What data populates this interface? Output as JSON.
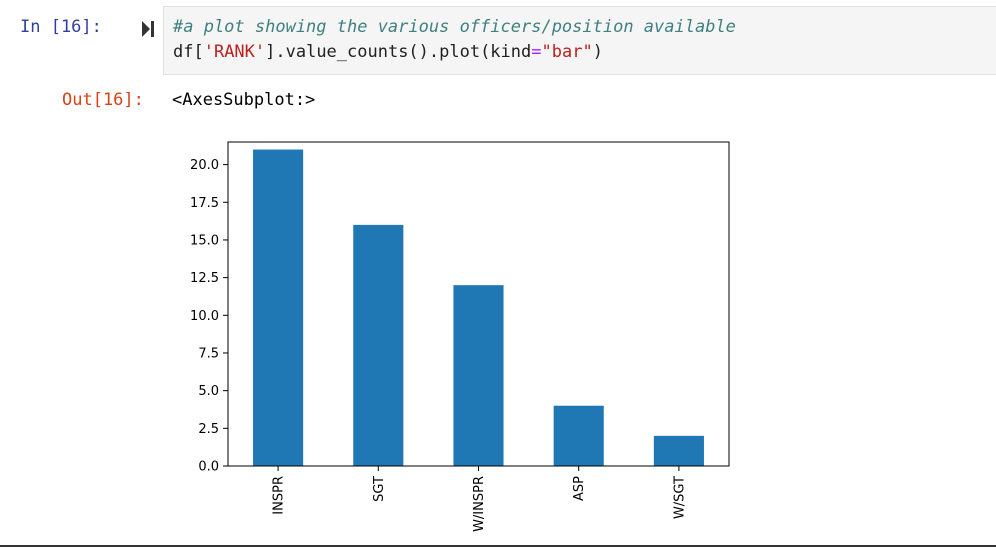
{
  "input_cell": {
    "prompt": "In [16]:",
    "code_comment": "#a plot showing the various officers/position available",
    "code_line2": {
      "part1": "df[",
      "str1": "'RANK'",
      "part2": "].value_counts().plot(kind",
      "op": "=",
      "str2": "\"bar\"",
      "part3": ")"
    }
  },
  "output_cell": {
    "prompt": "Out[16]:",
    "text": "<AxesSubplot:>"
  },
  "chart_data": {
    "type": "bar",
    "categories": [
      "INSPR",
      "SGT",
      "W/INSPR",
      "ASP",
      "W/SGT"
    ],
    "values": [
      21,
      16,
      12,
      4,
      2
    ],
    "ylim": [
      0,
      21.5
    ],
    "yticks": [
      "0.0",
      "2.5",
      "5.0",
      "7.5",
      "10.0",
      "12.5",
      "15.0",
      "17.5",
      "20.0"
    ],
    "title": "",
    "xlabel": "",
    "ylabel": "",
    "bar_color": "#1f77b4",
    "grid": false
  }
}
